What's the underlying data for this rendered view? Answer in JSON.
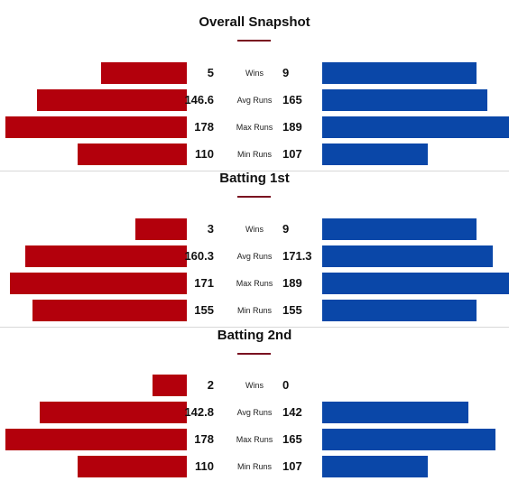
{
  "colors": {
    "team1": "#b3000c",
    "team2": "#0a47a8",
    "accent": "#7a1020"
  },
  "sections": [
    {
      "title": "Overall Snapshot",
      "stats": [
        {
          "label": "Wins",
          "team1": "5",
          "team2": "9"
        },
        {
          "label": "Avg Runs",
          "team1": "146.6",
          "team2": "165"
        },
        {
          "label": "Max Runs",
          "team1": "178",
          "team2": "189"
        },
        {
          "label": "Min Runs",
          "team1": "110",
          "team2": "107"
        }
      ]
    },
    {
      "title": "Batting 1st",
      "stats": [
        {
          "label": "Wins",
          "team1": "3",
          "team2": "9"
        },
        {
          "label": "Avg Runs",
          "team1": "160.3",
          "team2": "171.3"
        },
        {
          "label": "Max Runs",
          "team1": "171",
          "team2": "189"
        },
        {
          "label": "Min Runs",
          "team1": "155",
          "team2": "155"
        }
      ]
    },
    {
      "title": "Batting 2nd",
      "stats": [
        {
          "label": "Wins",
          "team1": "2",
          "team2": "0"
        },
        {
          "label": "Avg Runs",
          "team1": "142.8",
          "team2": "142"
        },
        {
          "label": "Max Runs",
          "team1": "178",
          "team2": "165"
        },
        {
          "label": "Min Runs",
          "team1": "110",
          "team2": "107"
        }
      ]
    }
  ]
}
